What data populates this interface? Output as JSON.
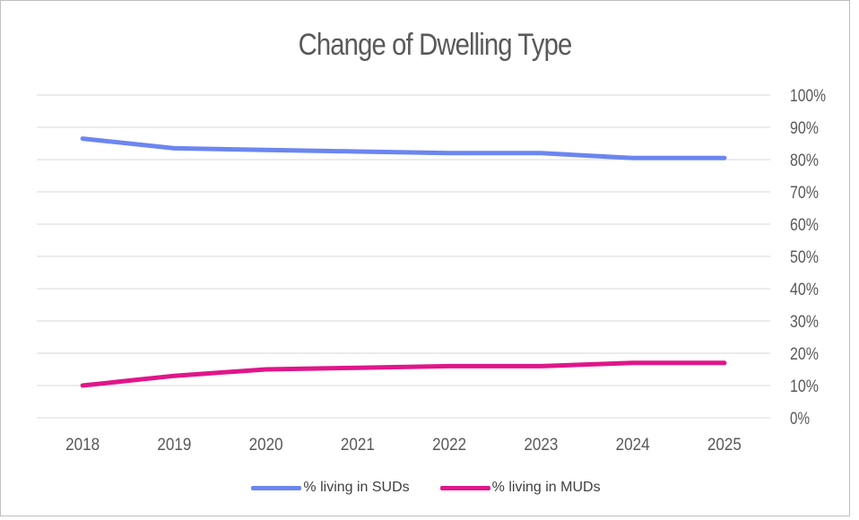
{
  "chart_data": {
    "type": "line",
    "title": "Change of Dwelling Type",
    "xlabel": "",
    "ylabel": "",
    "categories": [
      "2018",
      "2019",
      "2020",
      "2021",
      "2022",
      "2023",
      "2024",
      "2025"
    ],
    "series": [
      {
        "name": "% living in SUDs",
        "color": "#6b86f0",
        "values": [
          86.5,
          83.5,
          83,
          82.5,
          82,
          82,
          80.5,
          80.5
        ]
      },
      {
        "name": "% living in MUDs",
        "color": "#e0168a",
        "values": [
          10,
          13,
          15,
          15.5,
          16,
          16,
          17,
          17
        ]
      }
    ],
    "ylim": [
      0,
      100
    ],
    "y_ticks": [
      "0%",
      "10%",
      "20%",
      "30%",
      "40%",
      "50%",
      "60%",
      "70%",
      "80%",
      "90%",
      "100%"
    ],
    "y_axis_side": "right",
    "grid": true,
    "legend_position": "bottom"
  }
}
